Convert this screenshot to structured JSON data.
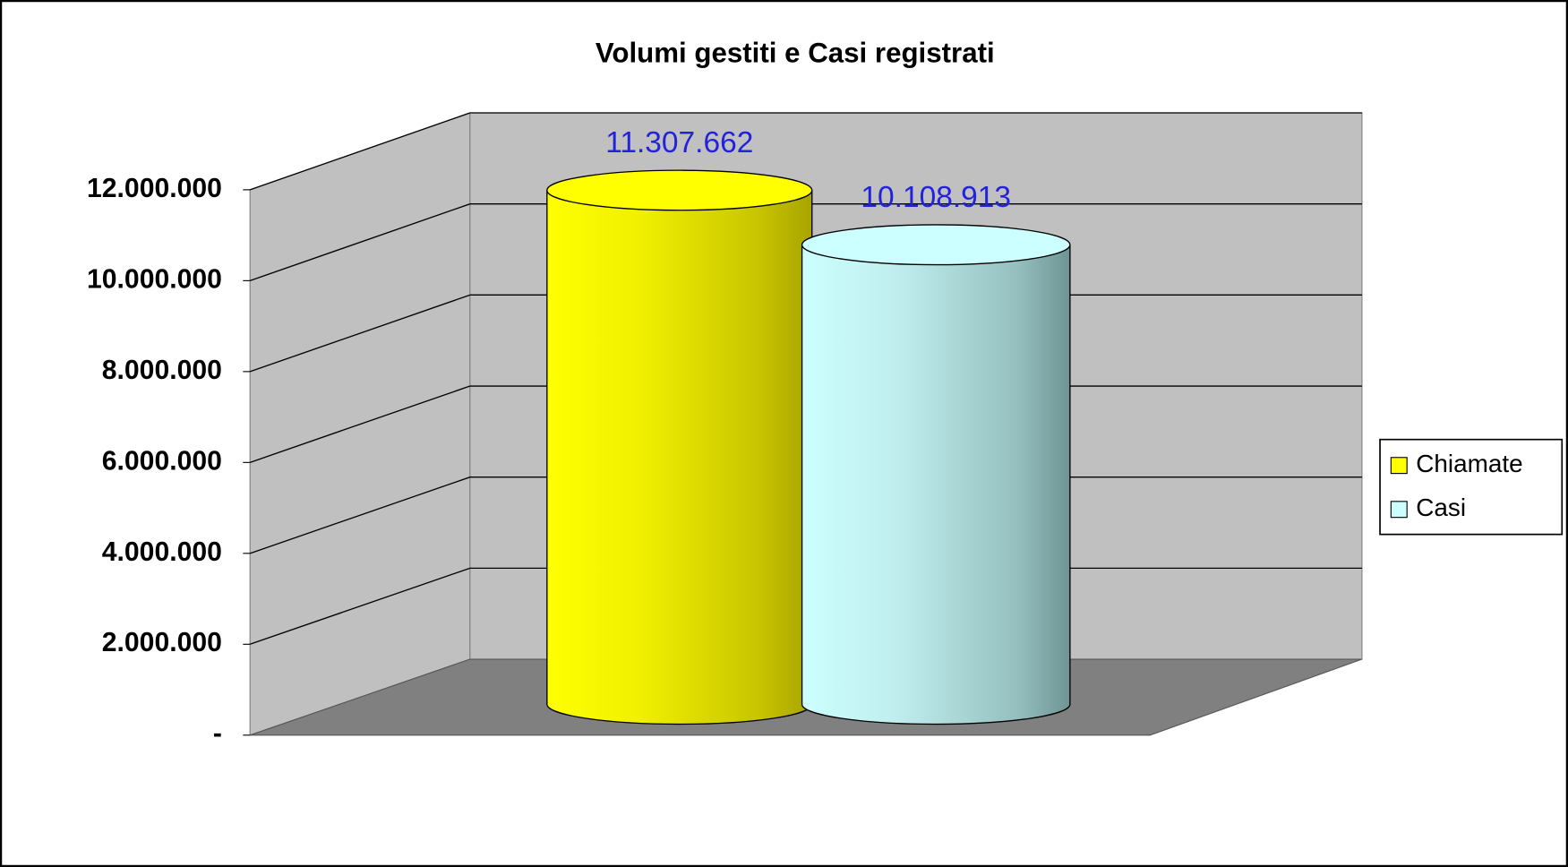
{
  "chart_data": {
    "type": "bar",
    "title": "Volumi gestiti e Casi registrati",
    "series": [
      {
        "name": "Chiamate",
        "color": "#ffff00",
        "values": [
          11307662
        ],
        "value_labels": [
          "11.307.662"
        ]
      },
      {
        "name": "Casi",
        "color": "#ccffff",
        "values": [
          10108913
        ],
        "value_labels": [
          "10.108.913"
        ]
      }
    ],
    "ylim": [
      0,
      12000000
    ],
    "yticks": [
      {
        "value": 0,
        "label": "-"
      },
      {
        "value": 2000000,
        "label": "2.000.000"
      },
      {
        "value": 4000000,
        "label": "4.000.000"
      },
      {
        "value": 6000000,
        "label": "6.000.000"
      },
      {
        "value": 8000000,
        "label": "8.000.000"
      },
      {
        "value": 10000000,
        "label": "10.000.000"
      },
      {
        "value": 12000000,
        "label": "12.000.000"
      }
    ],
    "grid": true,
    "legend": "right"
  }
}
